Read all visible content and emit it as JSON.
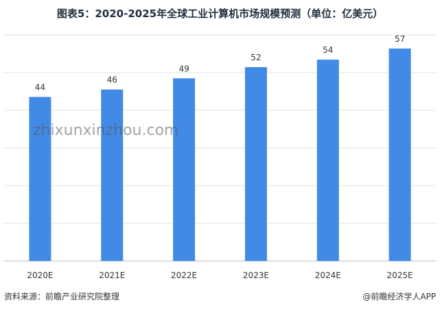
{
  "title": "图表5：2020-2025年全球工业计算机市场规模预测（单位：亿美元）",
  "chart_data": {
    "type": "bar",
    "categories": [
      "2020E",
      "2021E",
      "2022E",
      "2023E",
      "2024E",
      "2025E"
    ],
    "values": [
      44,
      46,
      49,
      52,
      54,
      57
    ],
    "ylim": [
      0,
      61
    ],
    "grid": true,
    "bar_color": "#4389e6",
    "xlabel": "",
    "ylabel": ""
  },
  "footer": {
    "source": "资料来源：前瞻产业研究院整理",
    "credit": "@前瞻经济学人APP"
  },
  "watermark": {
    "text": "zhixunxinzhou.com"
  }
}
